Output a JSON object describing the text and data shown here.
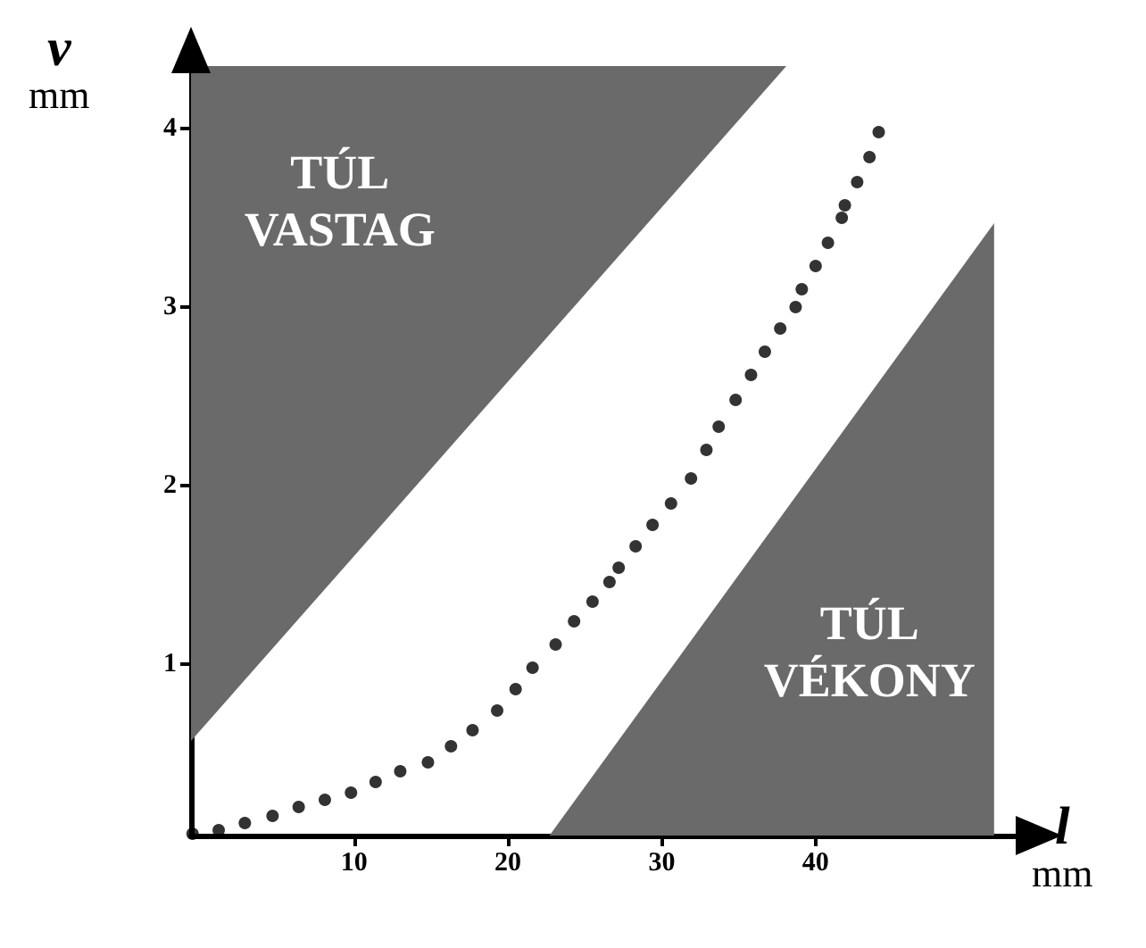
{
  "chart_data": {
    "type": "scatter",
    "xlabel": "l mm",
    "ylabel": "v mm",
    "xlim": [
      -0.6,
      53.7
    ],
    "ylim": [
      0.04,
      4.35
    ],
    "xticks": [
      10,
      20,
      30,
      40
    ],
    "yticks": [
      1,
      2,
      3,
      4
    ],
    "grid": false,
    "series": [
      {
        "type": "area",
        "name": "TÚL VASTAG",
        "color": "#6a6a6a",
        "x": [
          -0.6,
          38.1
        ],
        "values": [
          0.57,
          4.35
        ]
      },
      {
        "type": "area",
        "name": "TÚL VÉKONY",
        "color": "#6a6a6a",
        "x": [
          22.7,
          51.6
        ],
        "values": [
          0.04,
          3.47
        ]
      },
      {
        "color": "#000000",
        "marker": "circle",
        "x": [
          -0.5,
          1.2,
          2.9,
          4.7,
          6.4,
          8.1,
          9.8,
          11.4,
          13.0,
          14.8,
          16.3,
          17.7,
          19.3,
          20.5,
          21.6,
          23.1,
          24.3,
          25.5,
          26.6,
          27.2,
          28.3,
          29.4,
          30.6,
          31.9,
          32.9,
          33.7,
          34.8,
          35.8,
          36.7,
          37.7,
          38.7,
          39.1,
          40.0,
          40.8,
          41.7,
          41.9,
          42.7,
          43.5,
          44.1
        ],
        "values": [
          0.05,
          0.07,
          0.11,
          0.15,
          0.2,
          0.24,
          0.28,
          0.34,
          0.4,
          0.45,
          0.54,
          0.63,
          0.74,
          0.86,
          0.98,
          1.11,
          1.24,
          1.35,
          1.46,
          1.54,
          1.66,
          1.78,
          1.9,
          2.04,
          2.2,
          2.33,
          2.48,
          2.62,
          2.75,
          2.88,
          3.0,
          3.1,
          3.23,
          3.36,
          3.5,
          3.57,
          3.7,
          3.84,
          3.98
        ]
      }
    ]
  }
}
